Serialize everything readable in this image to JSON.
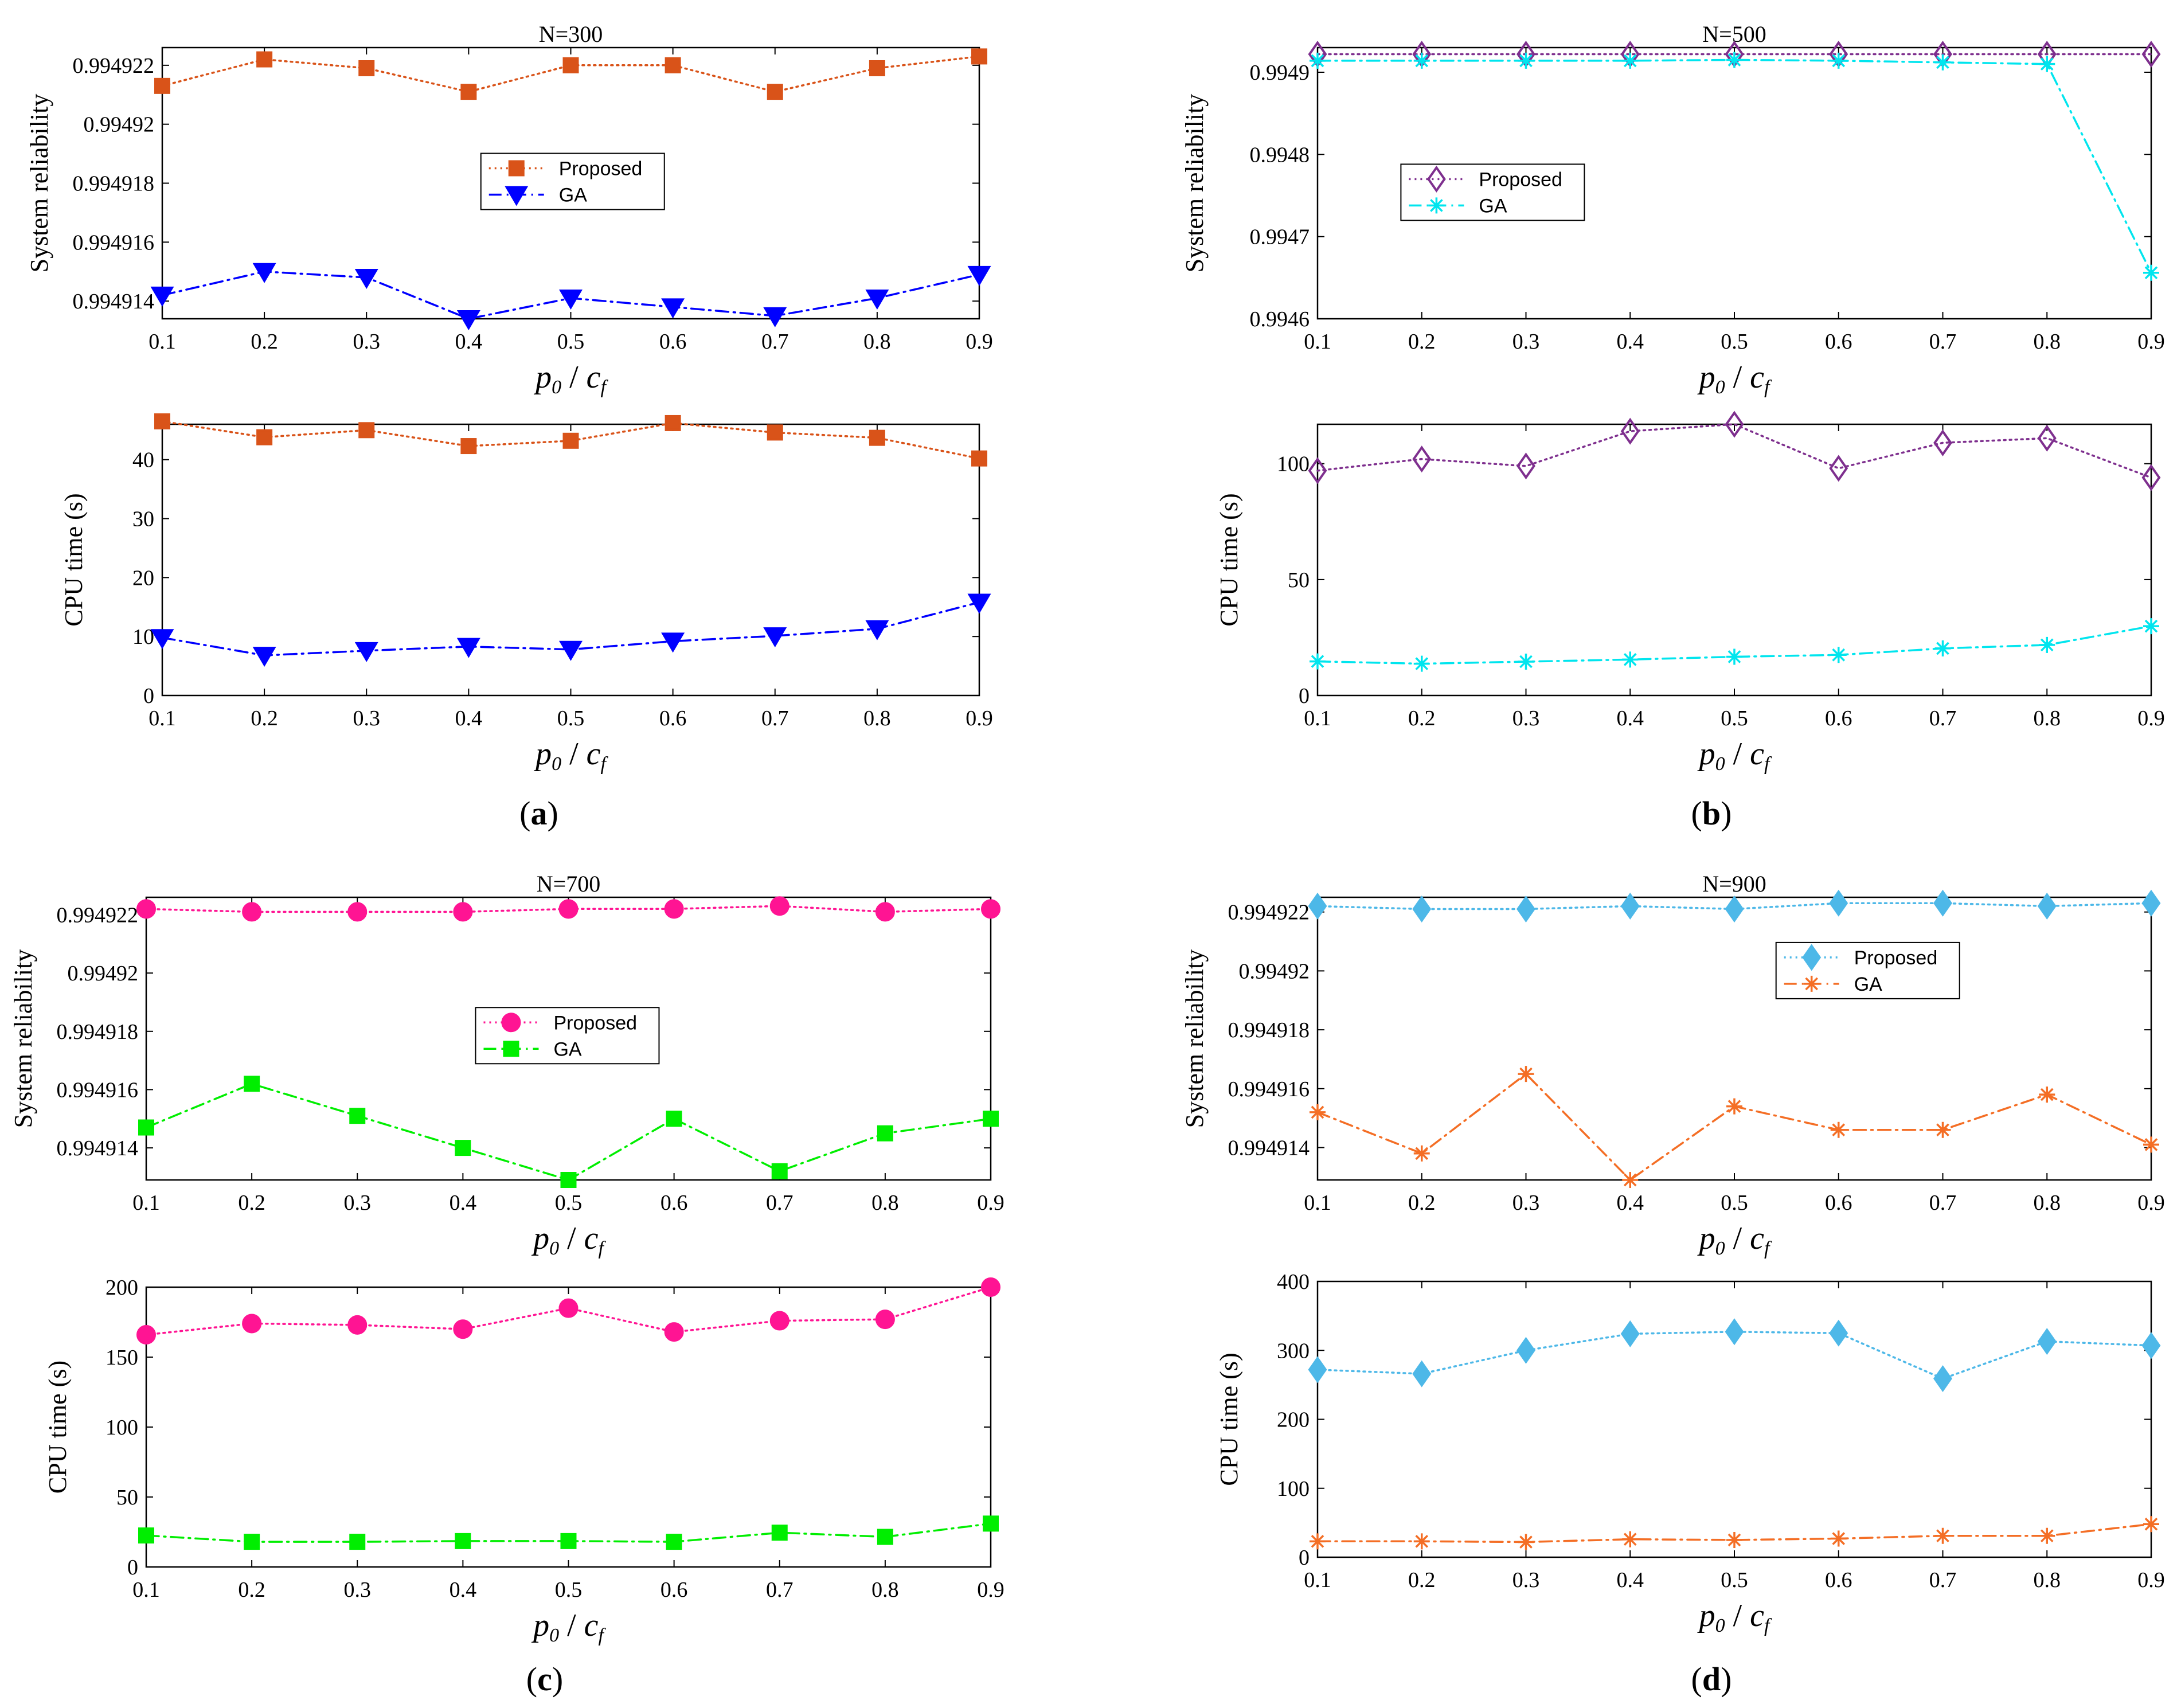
{
  "x_values": [
    0.1,
    0.2,
    0.3,
    0.4,
    0.5,
    0.6,
    0.7,
    0.8,
    0.9
  ],
  "x_tick_labels": [
    "0.1",
    "0.2",
    "0.3",
    "0.4",
    "0.5",
    "0.6",
    "0.7",
    "0.8",
    "0.9"
  ],
  "x_label": {
    "p": "p",
    "p_sub": "0",
    "slash": " / ",
    "c": "c",
    "c_sub": "f"
  },
  "panels": [
    {
      "label_open": "(",
      "label_letter": "a",
      "label_close": ")"
    },
    {
      "label_open": "(",
      "label_letter": "b",
      "label_close": ")"
    },
    {
      "label_open": "(",
      "label_letter": "c",
      "label_close": ")"
    },
    {
      "label_open": "(",
      "label_letter": "d",
      "label_close": ")"
    }
  ],
  "chart_data": [
    {
      "id": "a-rel",
      "type": "line",
      "title": "N=300",
      "xlabel": "p0 / cf",
      "ylabel": "System reliability",
      "x": [
        0.1,
        0.2,
        0.3,
        0.4,
        0.5,
        0.6,
        0.7,
        0.8,
        0.9
      ],
      "ylim": [
        0.9949134,
        0.9949226
      ],
      "yticks": [
        0.994914,
        0.994916,
        0.994918,
        0.99492,
        0.994922
      ],
      "ytick_labels": [
        "0.994914",
        "0.994916",
        "0.994918",
        "0.99492",
        "0.994922"
      ],
      "legend": "center",
      "series": [
        {
          "name": "Proposed",
          "color": "#d95319",
          "line": "dotted",
          "marker": "square",
          "filled": true,
          "values": [
            0.9949213,
            0.9949222,
            0.9949219,
            0.9949211,
            0.994922,
            0.994922,
            0.9949211,
            0.9949219,
            0.9949223
          ]
        },
        {
          "name": "GA",
          "color": "#0000ff",
          "line": "dashdot",
          "marker": "triangle-down",
          "filled": true,
          "values": [
            0.9949142,
            0.994915,
            0.9949148,
            0.9949134,
            0.9949141,
            0.9949138,
            0.9949135,
            0.9949141,
            0.9949149
          ]
        }
      ]
    },
    {
      "id": "a-cpu",
      "type": "line",
      "title": "",
      "xlabel": "p0 / cf",
      "ylabel": "CPU time (s)",
      "x": [
        0.1,
        0.2,
        0.3,
        0.4,
        0.5,
        0.6,
        0.7,
        0.8,
        0.9
      ],
      "ylim": [
        0,
        46
      ],
      "yticks": [
        0,
        10,
        20,
        30,
        40
      ],
      "ytick_labels": [
        "0",
        "10",
        "20",
        "30",
        "40"
      ],
      "legend": "none",
      "series": [
        {
          "name": "Proposed",
          "color": "#d95319",
          "line": "dotted",
          "marker": "square",
          "filled": true,
          "values": [
            46.5,
            43.8,
            45,
            42.3,
            43.2,
            46.2,
            44.6,
            43.7,
            40.2
          ]
        },
        {
          "name": "GA",
          "color": "#0000ff",
          "line": "dashdot",
          "marker": "triangle-down",
          "filled": true,
          "values": [
            9.8,
            6.8,
            7.6,
            8.3,
            7.8,
            9.2,
            10.1,
            11.3,
            15.8
          ]
        }
      ]
    },
    {
      "id": "b-rel",
      "type": "line",
      "title": "N=500",
      "xlabel": "p0 / cf",
      "ylabel": "System reliability",
      "x": [
        0.1,
        0.2,
        0.3,
        0.4,
        0.5,
        0.6,
        0.7,
        0.8,
        0.9
      ],
      "ylim": [
        0.9946,
        0.99493
      ],
      "yticks": [
        0.9946,
        0.9947,
        0.9948,
        0.9949
      ],
      "ytick_labels": [
        "0.9946",
        "0.9947",
        "0.9948",
        "0.9949"
      ],
      "legend": "center-left",
      "series": [
        {
          "name": "Proposed",
          "color": "#7e2f8e",
          "line": "dotted",
          "marker": "diamond",
          "filled": false,
          "values": [
            0.994922,
            0.994922,
            0.994922,
            0.994922,
            0.994922,
            0.994922,
            0.994922,
            0.994922,
            0.994922
          ]
        },
        {
          "name": "GA",
          "color": "#00e5ee",
          "line": "dashdot",
          "marker": "asterisk",
          "filled": false,
          "values": [
            0.994914,
            0.994914,
            0.994914,
            0.994914,
            0.994915,
            0.994914,
            0.994912,
            0.99491,
            0.994656
          ]
        }
      ]
    },
    {
      "id": "b-cpu",
      "type": "line",
      "title": "",
      "xlabel": "p0 / cf",
      "ylabel": "CPU time (s)",
      "x": [
        0.1,
        0.2,
        0.3,
        0.4,
        0.5,
        0.6,
        0.7,
        0.8,
        0.9
      ],
      "ylim": [
        0,
        117
      ],
      "yticks": [
        0,
        50,
        100
      ],
      "ytick_labels": [
        "0",
        "50",
        "100"
      ],
      "legend": "none",
      "series": [
        {
          "name": "Proposed",
          "color": "#7e2f8e",
          "line": "dotted",
          "marker": "diamond",
          "filled": false,
          "values": [
            97,
            102,
            99,
            114,
            117,
            98,
            109,
            111,
            94
          ]
        },
        {
          "name": "GA",
          "color": "#00e5ee",
          "line": "dashdot",
          "marker": "asterisk",
          "filled": false,
          "values": [
            14.7,
            13.7,
            14.6,
            15.5,
            16.7,
            17.5,
            20.3,
            21.8,
            29.9
          ]
        }
      ]
    },
    {
      "id": "c-rel",
      "type": "line",
      "title": "N=700",
      "xlabel": "p0 / cf",
      "ylabel": "System reliability",
      "x": [
        0.1,
        0.2,
        0.3,
        0.4,
        0.5,
        0.6,
        0.7,
        0.8,
        0.9
      ],
      "ylim": [
        0.9949129,
        0.9949226
      ],
      "yticks": [
        0.994914,
        0.994916,
        0.994918,
        0.99492,
        0.994922
      ],
      "ytick_labels": [
        "0.994914",
        "0.994916",
        "0.994918",
        "0.99492",
        "0.994922"
      ],
      "legend": "center",
      "series": [
        {
          "name": "Proposed",
          "color": "#ff1493",
          "line": "dotted",
          "marker": "circle",
          "filled": true,
          "values": [
            0.9949222,
            0.9949221,
            0.9949221,
            0.9949221,
            0.9949222,
            0.9949222,
            0.9949223,
            0.9949221,
            0.9949222
          ]
        },
        {
          "name": "GA",
          "color": "#00ee00",
          "line": "dashdot",
          "marker": "square",
          "filled": true,
          "values": [
            0.9949147,
            0.9949162,
            0.9949151,
            0.994914,
            0.9949129,
            0.994915,
            0.9949132,
            0.9949145,
            0.994915
          ]
        }
      ]
    },
    {
      "id": "c-cpu",
      "type": "line",
      "title": "",
      "xlabel": "p0 / cf",
      "ylabel": "CPU time (s)",
      "x": [
        0.1,
        0.2,
        0.3,
        0.4,
        0.5,
        0.6,
        0.7,
        0.8,
        0.9
      ],
      "ylim": [
        0,
        200
      ],
      "yticks": [
        0,
        50,
        100,
        150,
        200
      ],
      "ytick_labels": [
        "0",
        "50",
        "100",
        "150",
        "200"
      ],
      "legend": "none",
      "series": [
        {
          "name": "Proposed",
          "color": "#ff1493",
          "line": "dotted",
          "marker": "circle",
          "filled": true,
          "values": [
            166,
            174,
            173,
            170,
            185,
            168,
            176,
            177,
            200
          ]
        },
        {
          "name": "GA",
          "color": "#00ee00",
          "line": "dashdot",
          "marker": "square",
          "filled": true,
          "values": [
            22.5,
            18,
            18,
            18.5,
            18.5,
            18,
            24.5,
            21.5,
            31
          ]
        }
      ]
    },
    {
      "id": "d-rel",
      "type": "line",
      "title": "N=900",
      "xlabel": "p0 / cf",
      "ylabel": "System reliability",
      "x": [
        0.1,
        0.2,
        0.3,
        0.4,
        0.5,
        0.6,
        0.7,
        0.8,
        0.9
      ],
      "ylim": [
        0.9949129,
        0.9949225
      ],
      "yticks": [
        0.994914,
        0.994916,
        0.994918,
        0.99492,
        0.994922
      ],
      "ytick_labels": [
        "0.994914",
        "0.994916",
        "0.994918",
        "0.99492",
        "0.994922"
      ],
      "legend": "center-right",
      "series": [
        {
          "name": "Proposed",
          "color": "#4db8e8",
          "line": "dotted",
          "marker": "diamond",
          "filled": true,
          "values": [
            0.9949222,
            0.9949221,
            0.9949221,
            0.9949222,
            0.9949221,
            0.9949223,
            0.9949223,
            0.9949222,
            0.9949223
          ]
        },
        {
          "name": "GA",
          "color": "#f46e25",
          "line": "dashdot",
          "marker": "asterisk",
          "filled": false,
          "values": [
            0.9949152,
            0.9949138,
            0.9949165,
            0.9949129,
            0.9949154,
            0.9949146,
            0.9949146,
            0.9949158,
            0.9949141
          ]
        }
      ]
    },
    {
      "id": "d-cpu",
      "type": "line",
      "title": "",
      "xlabel": "p0 / cf",
      "ylabel": "CPU time (s)",
      "x": [
        0.1,
        0.2,
        0.3,
        0.4,
        0.5,
        0.6,
        0.7,
        0.8,
        0.9
      ],
      "ylim": [
        0,
        400
      ],
      "yticks": [
        0,
        100,
        200,
        300,
        400
      ],
      "ytick_labels": [
        "0",
        "100",
        "200",
        "300",
        "400"
      ],
      "legend": "none",
      "series": [
        {
          "name": "Proposed",
          "color": "#4db8e8",
          "line": "dotted",
          "marker": "diamond",
          "filled": true,
          "values": [
            272,
            266,
            300,
            324,
            327,
            325,
            259,
            313,
            307
          ]
        },
        {
          "name": "GA",
          "color": "#f46e25",
          "line": "dashdot",
          "marker": "asterisk",
          "filled": false,
          "values": [
            23,
            23,
            22,
            26,
            25,
            27,
            31,
            31,
            48
          ]
        }
      ]
    }
  ]
}
